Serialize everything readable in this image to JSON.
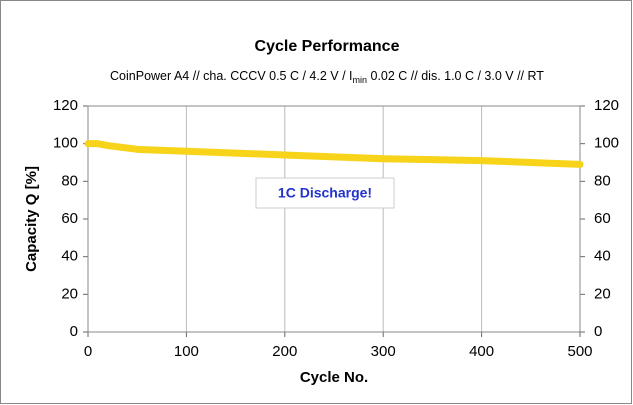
{
  "chart_data": {
    "type": "line",
    "title": "Cycle Performance",
    "subtitle": [
      "CoinPower A4 // cha. CCCV 0.5 C / 4.2 V / I",
      "min",
      " 0.02 C // dis. 1.0 C / 3.0 V // RT"
    ],
    "x_label": "Cycle No.",
    "y_label": "Capacity Q [%]",
    "annotation": "1C Discharge!",
    "x": [
      0,
      10,
      20,
      50,
      100,
      150,
      200,
      250,
      300,
      350,
      400,
      450,
      500
    ],
    "series": [
      {
        "name": "Capacity",
        "color": "#f7d31a",
        "values": [
          100,
          100,
          99,
          97,
          96,
          95,
          94,
          93,
          92,
          91.5,
          91,
          90,
          89
        ]
      }
    ],
    "xlim": [
      0,
      500
    ],
    "xticks": [
      0,
      100,
      200,
      300,
      400,
      500
    ],
    "ylim": [
      0,
      120
    ],
    "yticks": [
      0,
      20,
      40,
      60,
      80,
      100,
      120
    ],
    "y2lim": [
      0,
      120
    ],
    "y2ticks": [
      0,
      20,
      40,
      60,
      80,
      100,
      120
    ],
    "xgrid": true
  }
}
